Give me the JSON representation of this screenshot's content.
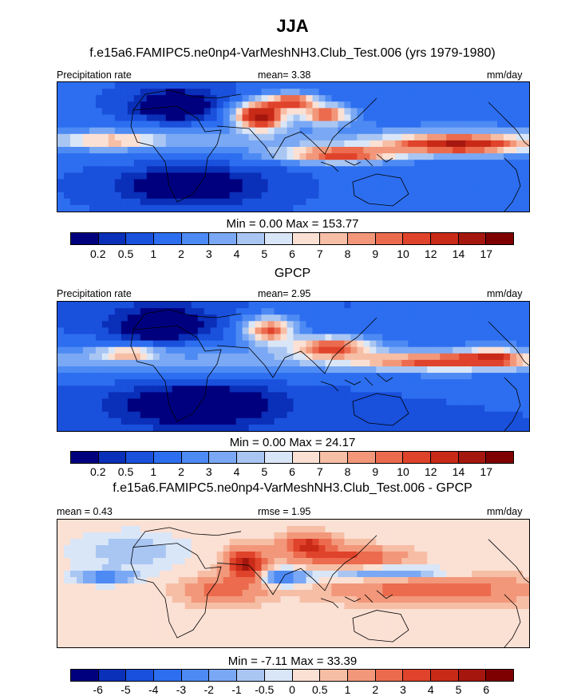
{
  "figure": {
    "title": "JJA"
  },
  "panels": [
    {
      "title": "f.e15a6.FAMIPC5.ne0np4-VarMeshNH3.Club_Test.006 (yrs 1979-1980)",
      "left_label": "Precipitation rate",
      "center_label": "mean=   3.38",
      "right_label": "mm/day",
      "minmax": "Min =   0.00 Max = 153.77"
    },
    {
      "title": "GPCP",
      "left_label": "Precipitation rate",
      "center_label": "mean=   2.95",
      "right_label": "mm/day",
      "minmax": "Min =   0.00 Max =  24.17"
    },
    {
      "title": "f.e15a6.FAMIPC5.ne0np4-VarMeshNH3.Club_Test.006 - GPCP",
      "left_label": "mean =   0.43",
      "center_label": "rmse =   1.95",
      "right_label": "mm/day",
      "minmax": "Min =  -7.11 Max =  33.39"
    }
  ],
  "colorbars": {
    "precip": {
      "colors": [
        "#00007f",
        "#0a2fb8",
        "#1950dc",
        "#2d6ef0",
        "#4d8af4",
        "#7aa8f4",
        "#a9c6f3",
        "#d9e6f7",
        "#fbe0d4",
        "#f7bea6",
        "#f2977a",
        "#ec6b4e",
        "#e0432b",
        "#c82a17",
        "#a5170e",
        "#7f0000"
      ],
      "labels": [
        "0.2",
        "0.5",
        "1",
        "2",
        "3",
        "4",
        "5",
        "6",
        "7",
        "8",
        "9",
        "10",
        "12",
        "14",
        "17"
      ]
    },
    "diff": {
      "colors": [
        "#00007f",
        "#0a2fb8",
        "#1950dc",
        "#2d6ef0",
        "#4d8af4",
        "#7aa8f4",
        "#a9c6f3",
        "#d9e6f7",
        "#fbe0d4",
        "#f7bea6",
        "#f2977a",
        "#ec6b4e",
        "#e0432b",
        "#c82a17",
        "#a5170e",
        "#7f0000"
      ],
      "labels": [
        "-6",
        "-5",
        "-4",
        "-3",
        "-2",
        "-1",
        "-0.5",
        "0",
        "0.5",
        "1",
        "2",
        "3",
        "4",
        "5",
        "6"
      ]
    }
  },
  "chart_data": [
    {
      "type": "heatmap",
      "title": "f.e15a6.FAMIPC5.ne0np4-VarMeshNH3.Club_Test.006 (yrs 1979-1980)",
      "variable": "Precipitation rate",
      "units": "mm/day",
      "season": "JJA",
      "mean": 3.38,
      "min": 0.0,
      "max": 153.77,
      "levels": [
        0.2,
        0.5,
        1,
        2,
        3,
        4,
        5,
        6,
        7,
        8,
        9,
        10,
        12,
        14,
        17
      ],
      "grid": false
    },
    {
      "type": "heatmap",
      "title": "GPCP",
      "variable": "Precipitation rate",
      "units": "mm/day",
      "season": "JJA",
      "mean": 2.95,
      "min": 0.0,
      "max": 24.17,
      "levels": [
        0.2,
        0.5,
        1,
        2,
        3,
        4,
        5,
        6,
        7,
        8,
        9,
        10,
        12,
        14,
        17
      ],
      "grid": false
    },
    {
      "type": "heatmap",
      "title": "f.e15a6.FAMIPC5.ne0np4-VarMeshNH3.Club_Test.006 - GPCP",
      "units": "mm/day",
      "season": "JJA",
      "mean": 0.43,
      "rmse": 1.95,
      "min": -7.11,
      "max": 33.39,
      "levels": [
        -6,
        -5,
        -4,
        -3,
        -2,
        -1,
        -0.5,
        0,
        0.5,
        1,
        2,
        3,
        4,
        5,
        6
      ],
      "grid": false
    }
  ]
}
